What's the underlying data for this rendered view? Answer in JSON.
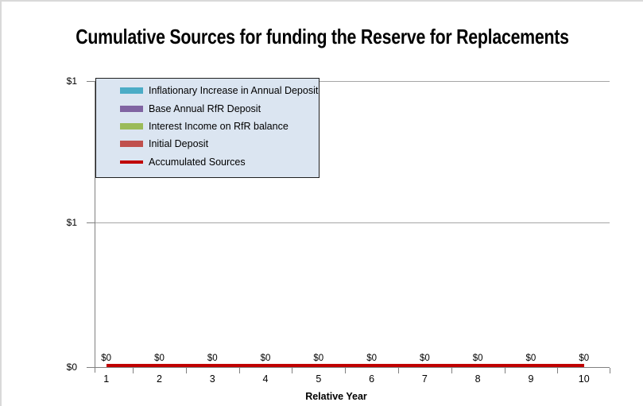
{
  "window": {
    "border_color": "#D9D9D9"
  },
  "chart_data": {
    "type": "line",
    "title": "Cumulative Sources for funding the Reserve for Replacements",
    "xlabel": "Relative Year",
    "ylabel": "",
    "categories": [
      "1",
      "2",
      "3",
      "4",
      "5",
      "6",
      "7",
      "8",
      "9",
      "10"
    ],
    "y_axis": {
      "tick_labels_top_to_bottom": [
        "$1",
        "$1",
        "$0"
      ],
      "min": 0,
      "max": 1,
      "major_unit": 0.5,
      "number_format": "$ rounded to whole dollars"
    },
    "series": [
      {
        "name": "Inflationary Increase in Annual Deposit",
        "color": "#4BACC6",
        "swatch": "bar",
        "values": [
          0,
          0,
          0,
          0,
          0,
          0,
          0,
          0,
          0,
          0
        ]
      },
      {
        "name": "Base Annual RfR Deposit",
        "color": "#8064A2",
        "swatch": "bar",
        "values": [
          0,
          0,
          0,
          0,
          0,
          0,
          0,
          0,
          0,
          0
        ]
      },
      {
        "name": "Interest Income on RfR balance",
        "color": "#9BBB59",
        "swatch": "bar",
        "values": [
          0,
          0,
          0,
          0,
          0,
          0,
          0,
          0,
          0,
          0
        ]
      },
      {
        "name": "Initial Deposit",
        "color": "#C0504D",
        "swatch": "bar",
        "values": [
          0,
          0,
          0,
          0,
          0,
          0,
          0,
          0,
          0,
          0
        ]
      },
      {
        "name": "Accumulated Sources",
        "color": "#C00000",
        "swatch": "line",
        "values": [
          0,
          0,
          0,
          0,
          0,
          0,
          0,
          0,
          0,
          0
        ]
      }
    ],
    "data_labels": [
      "$0",
      "$0",
      "$0",
      "$0",
      "$0",
      "$0",
      "$0",
      "$0",
      "$0",
      "$0"
    ],
    "legend": {
      "position": "inside-top-left",
      "bg": "#DBE5F1",
      "border": "#1F1F1F"
    },
    "grid": true,
    "grid_color": "#A6A6A6",
    "axis_color": "#808080"
  }
}
